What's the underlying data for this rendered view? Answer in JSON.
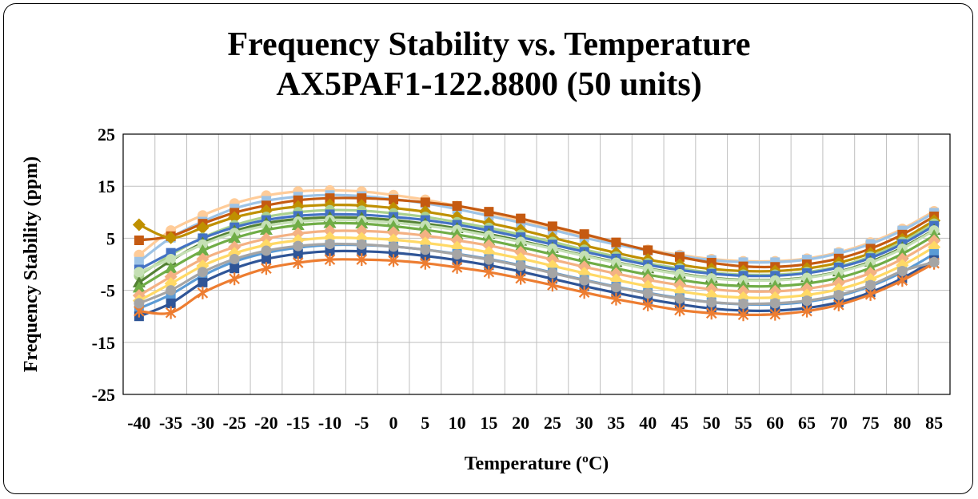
{
  "chart_data": {
    "type": "line",
    "title": "Frequency Stability vs. Temperature",
    "subtitle": "AX5PAF1-122.8800 (50 units)",
    "xlabel": "Temperature (ºC)",
    "ylabel": "Frequency Stability (ppm)",
    "x": [
      -40,
      -35,
      -30,
      -25,
      -20,
      -15,
      -10,
      -5,
      0,
      5,
      10,
      15,
      20,
      25,
      30,
      35,
      40,
      45,
      50,
      55,
      60,
      65,
      70,
      75,
      80,
      85
    ],
    "x_tick_labels": [
      "-40",
      "-35",
      "-30",
      "-25",
      "-20",
      "-15",
      "-10",
      "-5",
      "0",
      "5",
      "10",
      "15",
      "20",
      "25",
      "30",
      "35",
      "40",
      "45",
      "50",
      "55",
      "60",
      "65",
      "70",
      "75",
      "80",
      "85"
    ],
    "ylim": [
      -25,
      25
    ],
    "y_ticks": [
      -25,
      -15,
      -5,
      5,
      15,
      25
    ],
    "y_tick_labels": [
      "-25",
      "-15",
      "-5",
      "5",
      "15",
      "25"
    ],
    "grid": true,
    "legend": "none",
    "series": [
      {
        "color": "#ffcc99",
        "marker": "circle",
        "values": [
          1.8,
          6.5,
          9.4,
          11.7,
          13.2,
          14.0,
          14.2,
          14.0,
          13.3,
          12.4,
          11.2,
          9.9,
          8.4,
          6.9,
          5.4,
          4.0,
          2.8,
          1.8,
          1.0,
          0.6,
          0.6,
          1.1,
          2.3,
          4.2,
          6.8,
          10.2
        ]
      },
      {
        "color": "#9dc3e6",
        "marker": "square",
        "values": [
          0.5,
          5.1,
          8.2,
          10.7,
          12.2,
          13.0,
          13.3,
          13.1,
          12.5,
          11.7,
          10.6,
          9.3,
          8.0,
          6.6,
          5.1,
          3.8,
          2.6,
          1.6,
          0.8,
          0.4,
          0.4,
          0.9,
          2.1,
          3.9,
          6.5,
          9.9
        ]
      },
      {
        "color": "#c55a11",
        "marker": "square",
        "values": [
          4.6,
          5.4,
          7.8,
          9.9,
          11.3,
          12.3,
          12.7,
          12.7,
          12.4,
          11.9,
          11.2,
          10.1,
          8.8,
          7.3,
          5.8,
          4.2,
          2.7,
          1.4,
          0.3,
          -0.4,
          -0.5,
          0.0,
          1.1,
          3.0,
          5.7,
          9.2
        ]
      },
      {
        "color": "#bf9000",
        "marker": "diamond",
        "values": [
          7.6,
          5.1,
          7.0,
          9.0,
          10.3,
          11.1,
          11.4,
          11.3,
          10.8,
          10.1,
          9.1,
          7.9,
          6.6,
          5.1,
          3.6,
          2.2,
          0.9,
          -0.1,
          -0.9,
          -1.3,
          -1.3,
          -0.8,
          0.3,
          2.1,
          4.8,
          8.4
        ]
      },
      {
        "color": "#a9d18e",
        "marker": "circle",
        "values": [
          -2.2,
          1.8,
          5.1,
          7.5,
          9.1,
          10.0,
          10.4,
          10.3,
          9.8,
          9.1,
          8.1,
          7.0,
          5.7,
          4.3,
          2.8,
          1.5,
          0.2,
          -0.8,
          -1.6,
          -2.0,
          -2.0,
          -1.5,
          -0.4,
          1.5,
          4.3,
          7.8
        ]
      },
      {
        "color": "#4472c4",
        "marker": "square",
        "values": [
          -1.0,
          2.2,
          5.0,
          7.1,
          8.5,
          9.3,
          9.6,
          9.5,
          9.1,
          8.5,
          7.6,
          6.5,
          5.2,
          3.8,
          2.4,
          1.1,
          -0.1,
          -1.1,
          -1.8,
          -2.2,
          -2.2,
          -1.7,
          -0.6,
          1.2,
          3.9,
          7.4
        ]
      },
      {
        "color": "#548235",
        "marker": "triangle",
        "values": [
          -3.5,
          0.7,
          4.1,
          6.4,
          7.9,
          8.7,
          9.0,
          8.9,
          8.5,
          7.8,
          6.9,
          5.8,
          4.5,
          3.1,
          1.7,
          0.4,
          -0.8,
          -1.8,
          -2.6,
          -3.0,
          -3.0,
          -2.5,
          -1.4,
          0.5,
          3.2,
          6.6
        ]
      },
      {
        "color": "#c5e0b4",
        "marker": "circle",
        "values": [
          -1.5,
          1.0,
          3.8,
          6.0,
          7.4,
          8.2,
          8.5,
          8.4,
          8.0,
          7.4,
          6.6,
          5.5,
          4.3,
          3.0,
          1.6,
          0.3,
          -0.9,
          -1.9,
          -2.7,
          -3.1,
          -3.1,
          -2.6,
          -1.5,
          0.3,
          3.0,
          6.5
        ]
      },
      {
        "color": "#70ad47",
        "marker": "triangle",
        "values": [
          -4.5,
          -0.8,
          2.6,
          5.0,
          6.6,
          7.5,
          7.9,
          7.8,
          7.3,
          6.6,
          5.7,
          4.6,
          3.3,
          1.9,
          0.5,
          -0.8,
          -2.0,
          -3.0,
          -3.8,
          -4.2,
          -4.2,
          -3.7,
          -2.6,
          -0.7,
          2.0,
          5.5
        ]
      },
      {
        "color": "#f4b183",
        "marker": "diamond",
        "values": [
          -6.0,
          -2.4,
          1.0,
          3.3,
          4.9,
          5.9,
          6.4,
          6.4,
          6.1,
          5.5,
          4.6,
          3.6,
          2.3,
          0.9,
          -0.5,
          -1.8,
          -3.0,
          -4.0,
          -4.8,
          -5.2,
          -5.2,
          -4.7,
          -3.6,
          -1.7,
          1.0,
          4.5
        ]
      },
      {
        "color": "#ffd966",
        "marker": "diamond",
        "values": [
          -7.0,
          -3.7,
          -0.3,
          2.1,
          3.7,
          4.6,
          5.1,
          5.0,
          4.7,
          4.1,
          3.3,
          2.3,
          1.1,
          -0.3,
          -1.7,
          -3.0,
          -4.2,
          -5.2,
          -6.0,
          -6.4,
          -6.4,
          -5.9,
          -4.8,
          -2.9,
          -0.2,
          3.3
        ]
      },
      {
        "color": "#5b9bd5",
        "marker": "square",
        "values": [
          -8.5,
          -5.8,
          -2.2,
          0.5,
          2.2,
          3.2,
          3.7,
          3.7,
          3.4,
          2.8,
          2.0,
          1.0,
          -0.2,
          -1.6,
          -3.0,
          -4.3,
          -5.5,
          -6.5,
          -7.3,
          -7.7,
          -7.7,
          -7.2,
          -6.1,
          -4.2,
          -1.5,
          2.0
        ]
      },
      {
        "color": "#2f5597",
        "marker": "square",
        "values": [
          -10.0,
          -7.5,
          -3.5,
          -0.8,
          1.0,
          2.0,
          2.5,
          2.5,
          2.2,
          1.6,
          0.8,
          -0.2,
          -1.4,
          -2.8,
          -4.2,
          -5.5,
          -6.7,
          -7.7,
          -8.5,
          -8.9,
          -8.9,
          -8.4,
          -7.3,
          -5.4,
          -2.7,
          0.8
        ]
      },
      {
        "color": "#ed7d31",
        "marker": "asterisk",
        "values": [
          -9.0,
          -9.3,
          -5.5,
          -2.8,
          -0.8,
          0.3,
          0.9,
          0.9,
          0.7,
          0.2,
          -0.6,
          -1.5,
          -2.7,
          -4.0,
          -5.4,
          -6.7,
          -7.8,
          -8.8,
          -9.4,
          -9.7,
          -9.6,
          -9.0,
          -7.8,
          -5.8,
          -3.1,
          0.2
        ]
      },
      {
        "color": "#a5a5a5",
        "marker": "circle",
        "values": [
          -7.5,
          -5.0,
          -1.5,
          1.0,
          2.6,
          3.5,
          3.9,
          3.8,
          3.4,
          2.8,
          1.9,
          0.9,
          -0.3,
          -1.7,
          -3.1,
          -4.4,
          -5.6,
          -6.6,
          -7.3,
          -7.6,
          -7.5,
          -7.0,
          -5.9,
          -4.0,
          -1.3,
          0.4
        ]
      }
    ]
  }
}
